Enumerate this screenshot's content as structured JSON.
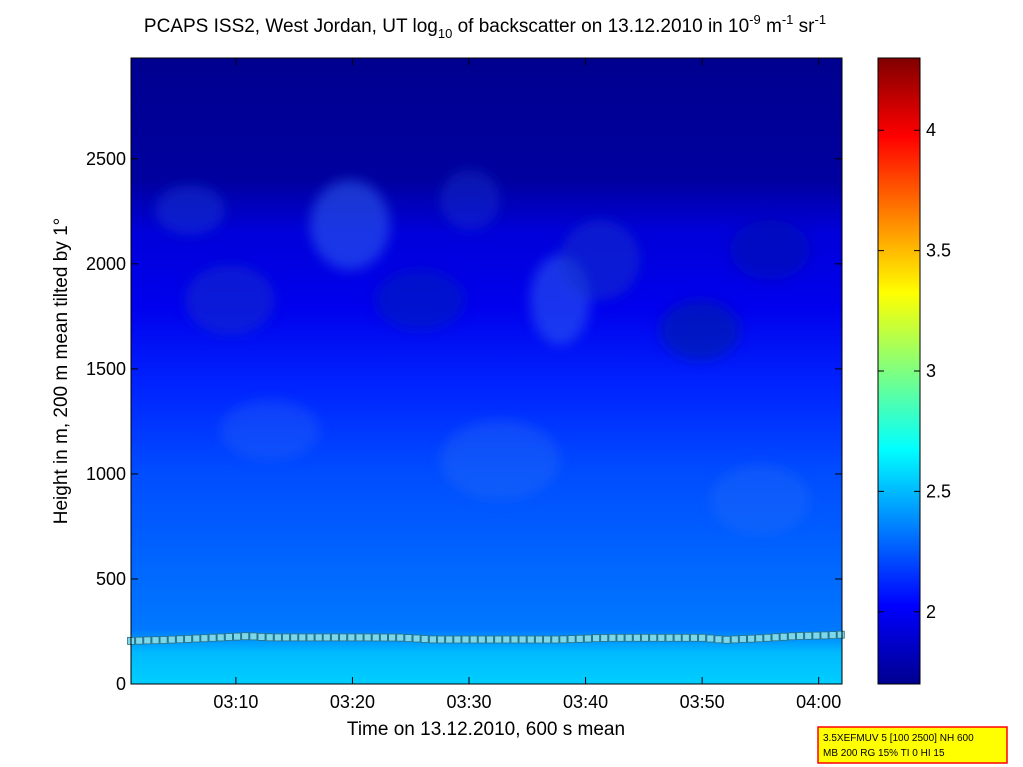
{
  "chart_data": {
    "type": "heatmap",
    "title": {
      "part1": "PCAPS ISS2, West Jordan, UT log",
      "sub1": "10",
      "part2": " of backscatter on 13.12.2010 in 10",
      "sup1": "-9",
      "part3": " m",
      "sup2": "-1",
      "part4": " sr",
      "sup3": "-1"
    },
    "xlabel": "Time on 13.12.2010, 600 s mean",
    "ylabel": "Height in m, 200 m mean tilted by 1°",
    "x_range_min": [
      1.0,
      62.0
    ],
    "y_range_m": [
      0,
      2980
    ],
    "x_ticks": [
      {
        "label": "03:10",
        "value": 10
      },
      {
        "label": "03:20",
        "value": 20
      },
      {
        "label": "03:30",
        "value": 30
      },
      {
        "label": "03:40",
        "value": 40
      },
      {
        "label": "03:50",
        "value": 50
      },
      {
        "label": "04:00",
        "value": 60
      }
    ],
    "y_ticks": [
      {
        "label": "0",
        "value": 0
      },
      {
        "label": "500",
        "value": 500
      },
      {
        "label": "1000",
        "value": 1000
      },
      {
        "label": "1500",
        "value": 1500
      },
      {
        "label": "2000",
        "value": 2000
      },
      {
        "label": "2500",
        "value": 2500
      }
    ],
    "colorbar": {
      "range": [
        1.7,
        4.3
      ],
      "colormap": "jet",
      "ticks": [
        {
          "label": "2",
          "value": 2
        },
        {
          "label": "2.5",
          "value": 2.5
        },
        {
          "label": "3",
          "value": 3
        },
        {
          "label": "3.5",
          "value": 3.5
        },
        {
          "label": "4",
          "value": 4
        }
      ]
    },
    "field_profile": [
      {
        "height": 0,
        "value": 2.55
      },
      {
        "height": 150,
        "value": 2.5
      },
      {
        "height": 260,
        "value": 2.33
      },
      {
        "height": 600,
        "value": 2.28
      },
      {
        "height": 1000,
        "value": 2.22
      },
      {
        "height": 1400,
        "value": 2.12
      },
      {
        "height": 1800,
        "value": 1.98
      },
      {
        "height": 2150,
        "value": 1.93
      },
      {
        "height": 2400,
        "value": 1.78
      },
      {
        "height": 2980,
        "value": 1.74
      }
    ],
    "layer_height_series": {
      "time_min": [
        1,
        4,
        8,
        11,
        13,
        16,
        20,
        24,
        27,
        30,
        34,
        38,
        42,
        46,
        50,
        52,
        55,
        58,
        61,
        62
      ],
      "height_m": [
        205,
        210,
        220,
        228,
        222,
        222,
        222,
        221,
        212,
        212,
        212,
        212,
        220,
        220,
        220,
        210,
        218,
        228,
        232,
        235
      ]
    },
    "config_note": [
      "3.5XEFMUV 5 [100 2500] NH 600",
      "MB 200 RG 15% TI 0 HI 15"
    ],
    "colors": {
      "note_background": "#ffff00",
      "note_border": "#ff0000",
      "marker_fill": "#7ad8e8"
    }
  }
}
